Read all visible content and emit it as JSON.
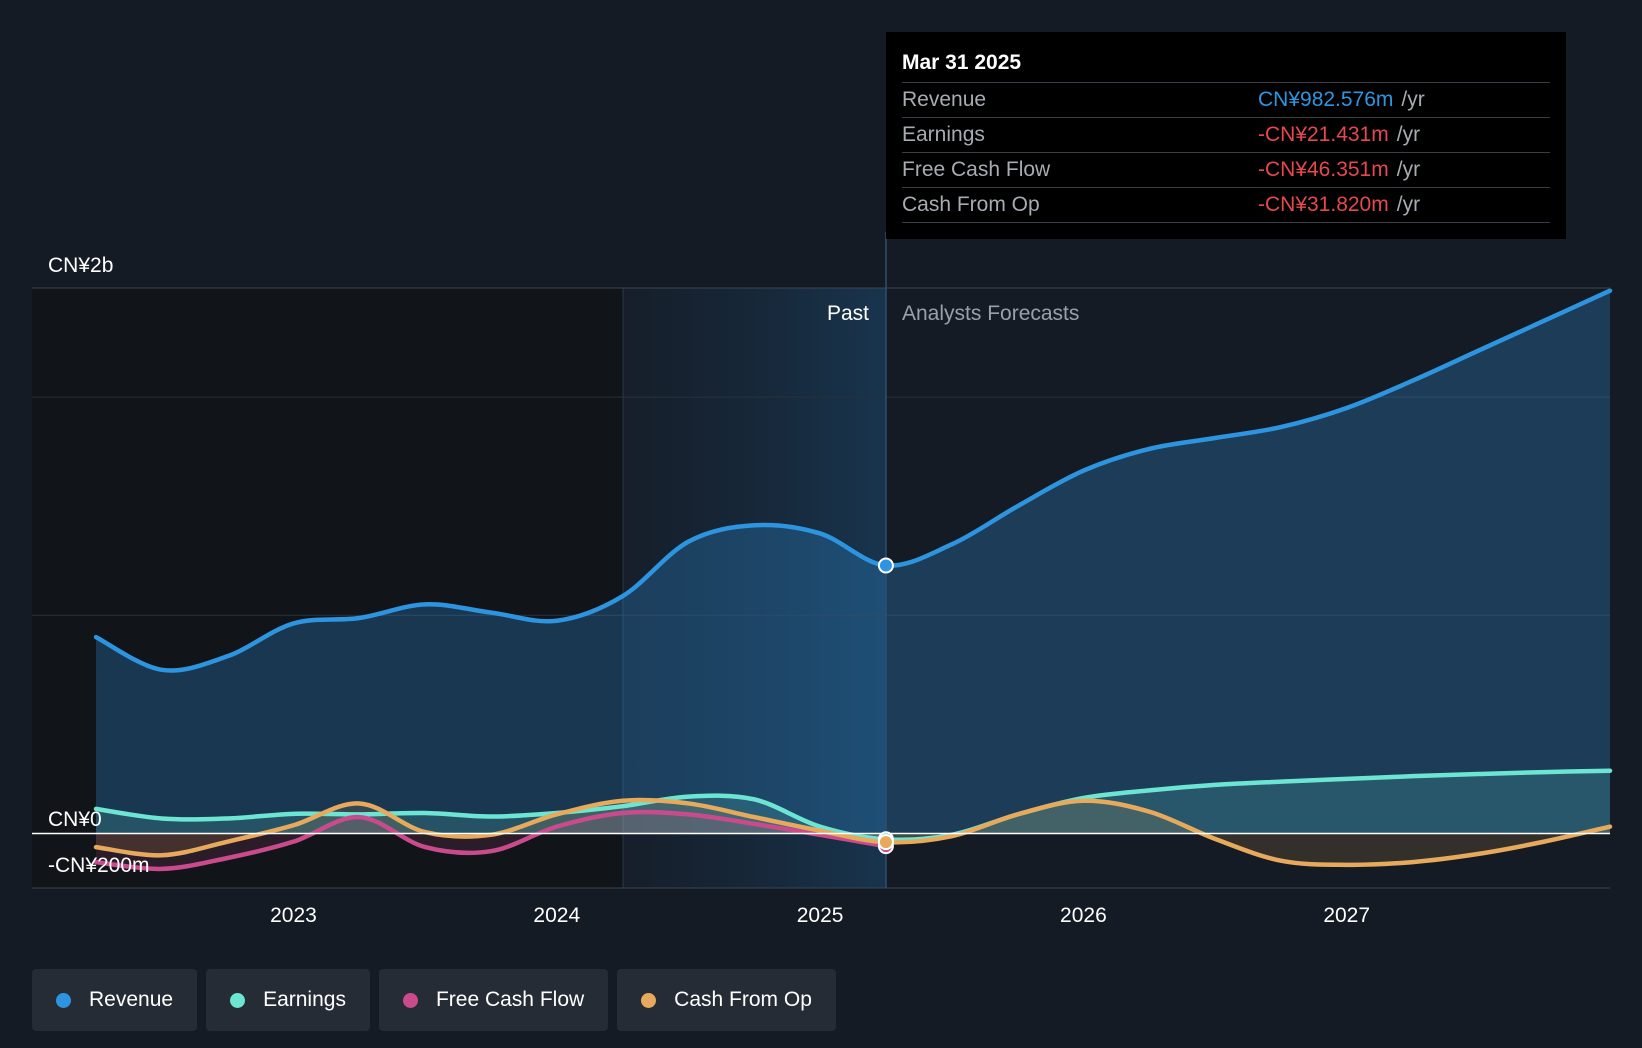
{
  "chart_data": {
    "type": "area",
    "currency": "CN¥",
    "y_axis_labels": [
      "CN¥2b",
      "CN¥0",
      "-CN¥200m"
    ],
    "ylim": [
      -200,
      2000
    ],
    "x_ticks": [
      "2023",
      "2024",
      "2025",
      "2026",
      "2027"
    ],
    "past_label": "Past",
    "forecast_label": "Analysts Forecasts",
    "series": [
      {
        "name": "Revenue",
        "color": "#2d95e0",
        "points": [
          [
            2022.25,
            720
          ],
          [
            2022.5,
            600
          ],
          [
            2022.75,
            650
          ],
          [
            2023.0,
            770
          ],
          [
            2023.25,
            790
          ],
          [
            2023.5,
            840
          ],
          [
            2023.75,
            810
          ],
          [
            2024.0,
            780
          ],
          [
            2024.25,
            870
          ],
          [
            2024.5,
            1070
          ],
          [
            2024.75,
            1130
          ],
          [
            2025.0,
            1100
          ],
          [
            2025.25,
            982.576
          ],
          [
            2025.5,
            1060
          ],
          [
            2025.75,
            1200
          ],
          [
            2026.0,
            1330
          ],
          [
            2026.25,
            1410
          ],
          [
            2026.5,
            1450
          ],
          [
            2026.75,
            1490
          ],
          [
            2027.0,
            1560
          ],
          [
            2027.25,
            1660
          ],
          [
            2027.5,
            1770
          ],
          [
            2027.75,
            1880
          ],
          [
            2028.0,
            1990
          ]
        ]
      },
      {
        "name": "Earnings",
        "color": "#6ce5d2",
        "points": [
          [
            2022.25,
            90
          ],
          [
            2022.5,
            55
          ],
          [
            2022.75,
            55
          ],
          [
            2023.0,
            72
          ],
          [
            2023.25,
            70
          ],
          [
            2023.5,
            75
          ],
          [
            2023.75,
            62
          ],
          [
            2024.0,
            75
          ],
          [
            2024.25,
            100
          ],
          [
            2024.5,
            135
          ],
          [
            2024.75,
            125
          ],
          [
            2025.0,
            25
          ],
          [
            2025.25,
            -21.431
          ],
          [
            2025.5,
            -5
          ],
          [
            2025.75,
            70
          ],
          [
            2026.0,
            130
          ],
          [
            2026.25,
            158
          ],
          [
            2026.5,
            178
          ],
          [
            2026.75,
            190
          ],
          [
            2027.0,
            200
          ],
          [
            2027.25,
            210
          ],
          [
            2027.5,
            218
          ],
          [
            2027.75,
            225
          ],
          [
            2028.0,
            230
          ]
        ]
      },
      {
        "name": "Free Cash Flow",
        "color": "#c94b8c",
        "points": [
          [
            2022.25,
            -105
          ],
          [
            2022.5,
            -130
          ],
          [
            2022.75,
            -90
          ],
          [
            2023.0,
            -30
          ],
          [
            2023.25,
            60
          ],
          [
            2023.5,
            -50
          ],
          [
            2023.75,
            -65
          ],
          [
            2024.0,
            25
          ],
          [
            2024.25,
            75
          ],
          [
            2024.5,
            70
          ],
          [
            2024.75,
            35
          ],
          [
            2025.0,
            -5
          ],
          [
            2025.25,
            -46.351
          ]
        ]
      },
      {
        "name": "Cash From Op",
        "color": "#e7a95b",
        "points": [
          [
            2022.25,
            -50
          ],
          [
            2022.5,
            -80
          ],
          [
            2022.75,
            -30
          ],
          [
            2023.0,
            30
          ],
          [
            2023.25,
            110
          ],
          [
            2023.5,
            5
          ],
          [
            2023.75,
            -5
          ],
          [
            2024.0,
            70
          ],
          [
            2024.25,
            120
          ],
          [
            2024.5,
            110
          ],
          [
            2024.75,
            60
          ],
          [
            2025.0,
            10
          ],
          [
            2025.25,
            -31.82
          ],
          [
            2025.5,
            -10
          ],
          [
            2025.75,
            70
          ],
          [
            2026.0,
            120
          ],
          [
            2026.25,
            80
          ],
          [
            2026.5,
            -20
          ],
          [
            2026.75,
            -100
          ],
          [
            2027.0,
            -115
          ],
          [
            2027.25,
            -105
          ],
          [
            2027.5,
            -75
          ],
          [
            2027.75,
            -30
          ],
          [
            2028.0,
            25
          ]
        ]
      }
    ]
  },
  "tooltip": {
    "date": "Mar 31 2025",
    "unit": "/yr",
    "rows": [
      {
        "label": "Revenue",
        "value": "CN¥982.576m",
        "color": "#2d95e0"
      },
      {
        "label": "Earnings",
        "value": "-CN¥21.431m",
        "color": "#e5484d"
      },
      {
        "label": "Free Cash Flow",
        "value": "-CN¥46.351m",
        "color": "#e5484d"
      },
      {
        "label": "Cash From Op",
        "value": "-CN¥31.820m",
        "color": "#e5484d"
      }
    ]
  },
  "legend": [
    {
      "label": "Revenue",
      "color": "#2d95e0"
    },
    {
      "label": "Earnings",
      "color": "#6ce5d2"
    },
    {
      "label": "Free Cash Flow",
      "color": "#c94b8c"
    },
    {
      "label": "Cash From Op",
      "color": "#e7a95b"
    }
  ]
}
